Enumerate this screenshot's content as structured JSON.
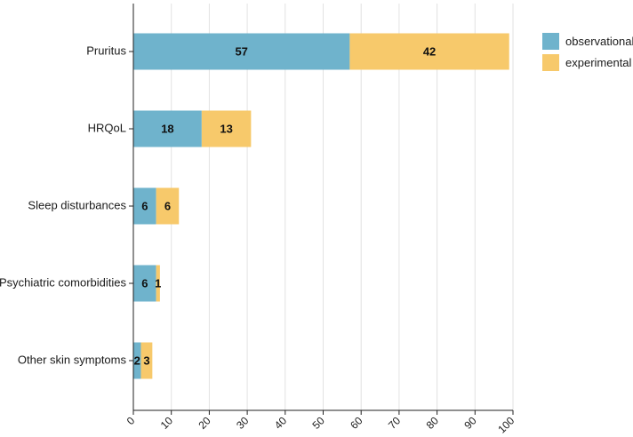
{
  "chart_data": {
    "type": "bar",
    "orientation": "horizontal",
    "stacked": true,
    "categories": [
      "Pruritus",
      "HRQoL",
      "Sleep disturbances",
      "Psychiatric comorbidities",
      "Other skin symptoms"
    ],
    "series": [
      {
        "name": "observational",
        "values": [
          57,
          18,
          6,
          6,
          2
        ],
        "color": "#6fb3cc"
      },
      {
        "name": "experimental",
        "values": [
          42,
          13,
          6,
          1,
          3
        ],
        "color": "#f7c96b"
      }
    ],
    "xlim": [
      0,
      100
    ],
    "xticks": [
      0,
      10,
      20,
      30,
      40,
      50,
      60,
      70,
      80,
      90,
      100
    ],
    "title": "",
    "xlabel": "",
    "ylabel": "",
    "grid": "vertical",
    "legend": "top-right"
  }
}
